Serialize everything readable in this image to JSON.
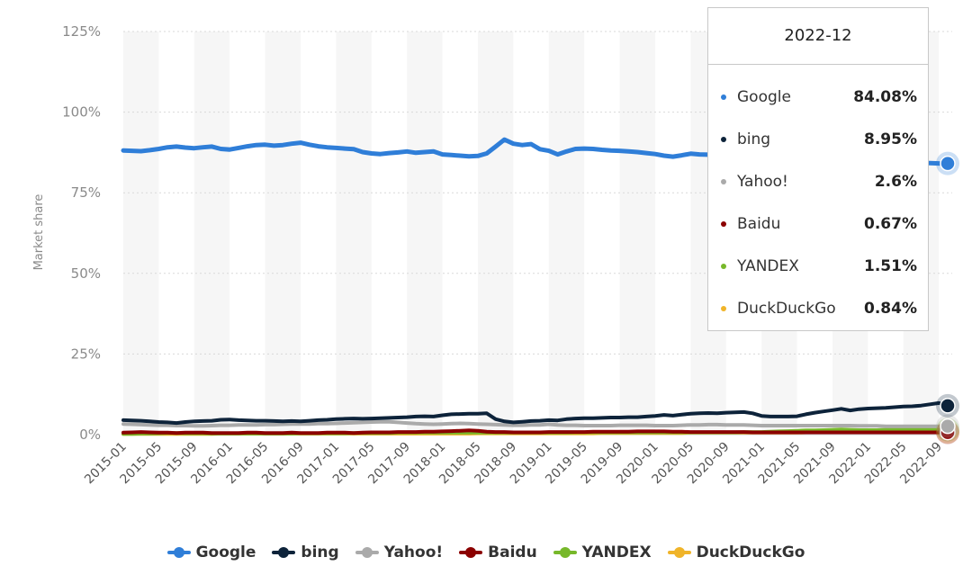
{
  "chart_data": {
    "type": "line",
    "title": "",
    "ylabel": "Market share",
    "xlabel": "",
    "ylim": [
      0,
      125
    ],
    "y_ticks": [
      "0%",
      "25%",
      "50%",
      "75%",
      "100%",
      "125%"
    ],
    "y_tick_values": [
      0,
      25,
      50,
      75,
      100,
      125
    ],
    "x_tick_labels": [
      "2015-01",
      "2015-05",
      "2015-09",
      "2016-01",
      "2016-05",
      "2016-09",
      "2017-01",
      "2017-05",
      "2017-09",
      "2018-01",
      "2018-05",
      "2018-09",
      "2019-01",
      "2019-05",
      "2019-09",
      "2020-01",
      "2020-05",
      "2020-09",
      "2021-01",
      "2021-05",
      "2021-09",
      "2022-01",
      "2022-05",
      "2022-09"
    ],
    "grid": "horizontal dashed, alternating vertical bands",
    "legend_position": "bottom",
    "series": [
      {
        "name": "Google",
        "color": "#2f7ed8",
        "values": [
          88.1,
          88.0,
          87.9,
          88.2,
          88.6,
          89.1,
          89.3,
          89.0,
          88.8,
          89.1,
          89.3,
          88.6,
          88.4,
          88.9,
          89.4,
          89.8,
          89.9,
          89.6,
          89.8,
          90.2,
          90.5,
          89.9,
          89.4,
          89.1,
          88.9,
          88.7,
          88.5,
          87.6,
          87.2,
          87.0,
          87.3,
          87.5,
          87.8,
          87.4,
          87.6,
          87.8,
          86.9,
          86.7,
          86.5,
          86.3,
          86.4,
          87.2,
          89.3,
          91.5,
          90.2,
          89.8,
          90.1,
          88.5,
          88.0,
          86.9,
          87.8,
          88.6,
          88.7,
          88.6,
          88.3,
          88.1,
          88.0,
          87.8,
          87.6,
          87.3,
          87.0,
          86.5,
          86.2,
          86.6,
          87.1,
          86.9,
          86.8,
          86.5,
          86.3,
          86.1,
          86.2,
          86.0,
          85.9,
          86.1,
          85.8,
          85.6,
          85.4,
          85.3,
          85.6,
          85.8,
          85.5,
          85.2,
          85.0,
          84.8,
          85.1,
          84.9,
          84.6,
          84.5,
          84.7,
          84.5,
          84.3,
          84.2,
          84.1,
          84.08
        ]
      },
      {
        "name": "bing",
        "color": "#0d233a",
        "values": [
          4.5,
          4.4,
          4.3,
          4.1,
          3.9,
          3.8,
          3.6,
          3.9,
          4.1,
          4.2,
          4.3,
          4.6,
          4.7,
          4.5,
          4.4,
          4.3,
          4.3,
          4.2,
          4.1,
          4.2,
          4.1,
          4.3,
          4.5,
          4.6,
          4.8,
          4.9,
          5.0,
          4.9,
          5.0,
          5.1,
          5.2,
          5.3,
          5.4,
          5.6,
          5.7,
          5.6,
          6.0,
          6.3,
          6.4,
          6.5,
          6.5,
          6.6,
          4.8,
          4.1,
          3.8,
          4.0,
          4.2,
          4.3,
          4.5,
          4.4,
          4.8,
          5.0,
          5.1,
          5.1,
          5.2,
          5.3,
          5.3,
          5.4,
          5.4,
          5.6,
          5.8,
          6.1,
          5.9,
          6.2,
          6.5,
          6.6,
          6.7,
          6.6,
          6.8,
          6.9,
          7.0,
          6.6,
          5.8,
          5.6,
          5.6,
          5.6,
          5.7,
          6.3,
          6.8,
          7.2,
          7.6,
          8.0,
          7.5,
          7.9,
          8.1,
          8.2,
          8.3,
          8.5,
          8.7,
          8.8,
          9.0,
          9.4,
          9.8,
          8.95
        ]
      },
      {
        "name": "Yahoo!",
        "color": "#aaaaaa",
        "values": [
          3.3,
          3.2,
          3.1,
          3.0,
          2.9,
          2.9,
          2.8,
          2.8,
          2.7,
          2.7,
          2.8,
          2.9,
          2.9,
          3.0,
          3.0,
          3.0,
          3.1,
          3.1,
          3.2,
          3.3,
          3.3,
          3.3,
          3.4,
          3.4,
          3.5,
          3.6,
          3.7,
          3.8,
          3.9,
          4.0,
          4.0,
          3.8,
          3.6,
          3.4,
          3.3,
          3.2,
          3.3,
          3.4,
          3.5,
          3.4,
          3.3,
          3.2,
          3.1,
          3.0,
          2.9,
          2.9,
          3.0,
          3.0,
          3.2,
          3.0,
          2.9,
          2.9,
          2.8,
          2.8,
          2.8,
          2.8,
          2.9,
          2.9,
          2.9,
          2.9,
          2.8,
          2.8,
          2.8,
          2.9,
          3.0,
          3.0,
          3.1,
          3.1,
          3.0,
          3.0,
          3.0,
          2.9,
          2.8,
          2.8,
          2.8,
          2.8,
          2.8,
          2.8,
          2.8,
          2.8,
          2.8,
          2.8,
          2.8,
          2.7,
          2.7,
          2.7,
          2.6,
          2.6,
          2.6,
          2.6,
          2.6,
          2.6,
          2.6,
          2.6
        ]
      },
      {
        "name": "Baidu",
        "color": "#8b0000",
        "values": [
          0.6,
          0.7,
          0.8,
          0.7,
          0.6,
          0.6,
          0.5,
          0.6,
          0.6,
          0.6,
          0.5,
          0.5,
          0.5,
          0.5,
          0.6,
          0.6,
          0.5,
          0.5,
          0.5,
          0.6,
          0.5,
          0.5,
          0.5,
          0.6,
          0.6,
          0.6,
          0.5,
          0.6,
          0.7,
          0.7,
          0.7,
          0.8,
          0.8,
          0.8,
          0.9,
          0.9,
          1.0,
          1.1,
          1.2,
          1.3,
          1.2,
          0.9,
          0.8,
          0.8,
          0.7,
          0.7,
          0.7,
          0.7,
          0.8,
          0.8,
          0.8,
          0.8,
          0.8,
          0.9,
          0.9,
          0.9,
          0.9,
          0.9,
          1.0,
          1.0,
          1.0,
          1.0,
          0.9,
          0.9,
          0.8,
          0.8,
          0.8,
          0.8,
          0.8,
          0.8,
          0.8,
          0.7,
          0.7,
          0.7,
          0.7,
          0.7,
          0.7,
          0.7,
          0.7,
          0.7,
          0.7,
          0.7,
          0.7,
          0.7,
          0.7,
          0.7,
          0.7,
          0.7,
          0.7,
          0.7,
          0.7,
          0.7,
          0.7,
          0.67
        ]
      },
      {
        "name": "YANDEX",
        "color": "#77b82a",
        "values": [
          0.2,
          0.2,
          0.3,
          0.3,
          0.4,
          0.5,
          0.5,
          0.4,
          0.4,
          0.4,
          0.3,
          0.3,
          0.3,
          0.3,
          0.3,
          0.3,
          0.3,
          0.3,
          0.3,
          0.3,
          0.4,
          0.4,
          0.4,
          0.4,
          0.4,
          0.4,
          0.5,
          0.5,
          0.5,
          0.5,
          0.5,
          0.6,
          0.6,
          0.6,
          0.6,
          0.6,
          0.6,
          0.6,
          0.6,
          0.6,
          0.6,
          0.6,
          0.6,
          0.6,
          0.6,
          0.6,
          0.6,
          0.6,
          0.6,
          0.6,
          0.6,
          0.7,
          0.7,
          0.7,
          0.7,
          0.7,
          0.7,
          0.7,
          0.7,
          0.7,
          0.7,
          0.7,
          0.7,
          0.7,
          0.7,
          0.7,
          0.7,
          0.7,
          0.7,
          0.7,
          0.8,
          0.8,
          0.8,
          0.9,
          1.0,
          1.1,
          1.2,
          1.3,
          1.3,
          1.4,
          1.5,
          1.6,
          1.5,
          1.4,
          1.4,
          1.4,
          1.5,
          1.5,
          1.5,
          1.5,
          1.5,
          1.5,
          1.5,
          1.51
        ]
      },
      {
        "name": "DuckDuckGo",
        "color": "#f0b429",
        "values": [
          0.2,
          0.2,
          0.2,
          0.2,
          0.2,
          0.2,
          0.2,
          0.2,
          0.2,
          0.2,
          0.2,
          0.3,
          0.3,
          0.3,
          0.3,
          0.3,
          0.3,
          0.3,
          0.3,
          0.3,
          0.3,
          0.3,
          0.3,
          0.3,
          0.3,
          0.3,
          0.3,
          0.3,
          0.3,
          0.3,
          0.3,
          0.3,
          0.3,
          0.3,
          0.3,
          0.3,
          0.3,
          0.3,
          0.3,
          0.3,
          0.4,
          0.4,
          0.4,
          0.4,
          0.4,
          0.4,
          0.4,
          0.4,
          0.4,
          0.4,
          0.4,
          0.4,
          0.4,
          0.4,
          0.5,
          0.5,
          0.5,
          0.5,
          0.5,
          0.5,
          0.5,
          0.5,
          0.5,
          0.5,
          0.6,
          0.6,
          0.6,
          0.6,
          0.6,
          0.6,
          0.6,
          0.6,
          0.6,
          0.6,
          0.6,
          0.6,
          0.6,
          0.7,
          0.7,
          0.7,
          0.7,
          0.7,
          0.7,
          0.7,
          0.7,
          0.7,
          0.7,
          0.7,
          0.8,
          0.8,
          0.8,
          0.8,
          0.8,
          0.84
        ]
      }
    ]
  },
  "tooltip": {
    "title": "2022-12",
    "rows": [
      {
        "name": "Google",
        "value": "84.08%",
        "color": "#2f7ed8"
      },
      {
        "name": "bing",
        "value": "8.95%",
        "color": "#0d233a"
      },
      {
        "name": "Yahoo!",
        "value": "2.6%",
        "color": "#aaaaaa"
      },
      {
        "name": "Baidu",
        "value": "0.67%",
        "color": "#8b0000"
      },
      {
        "name": "YANDEX",
        "value": "1.51%",
        "color": "#77b82a"
      },
      {
        "name": "DuckDuckGo",
        "value": "0.84%",
        "color": "#f0b429"
      }
    ]
  },
  "legend": {
    "items": [
      {
        "name": "Google",
        "color": "#2f7ed8"
      },
      {
        "name": "bing",
        "color": "#0d233a"
      },
      {
        "name": "Yahoo!",
        "color": "#aaaaaa"
      },
      {
        "name": "Baidu",
        "color": "#8b0000"
      },
      {
        "name": "YANDEX",
        "color": "#77b82a"
      },
      {
        "name": "DuckDuckGo",
        "color": "#f0b429"
      }
    ]
  }
}
